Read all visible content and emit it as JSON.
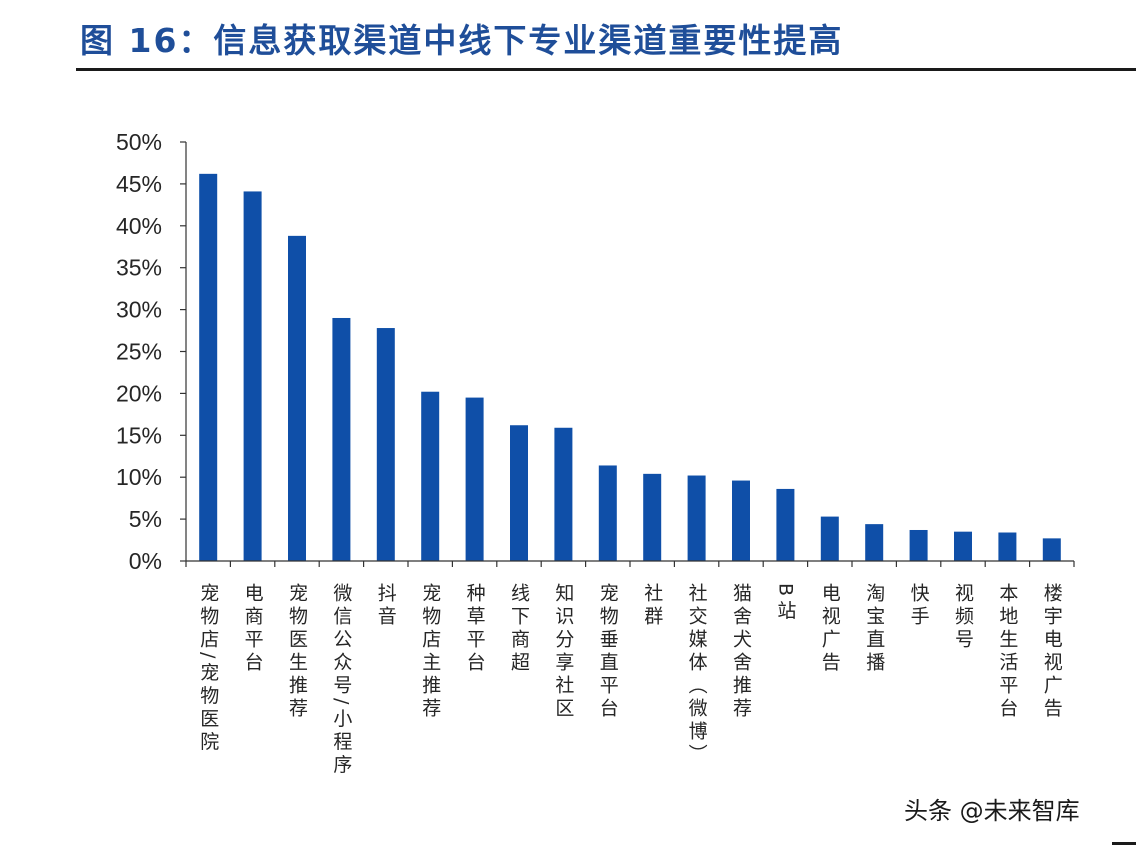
{
  "header": {
    "title": "图 16：信息获取渠道中线下专业渠道重要性提高"
  },
  "chart_data": {
    "type": "bar",
    "title": "",
    "xlabel": "",
    "ylabel": "",
    "ylim": [
      0,
      50
    ],
    "yticks": [
      "0%",
      "5%",
      "10%",
      "15%",
      "20%",
      "25%",
      "30%",
      "35%",
      "40%",
      "45%",
      "50%"
    ],
    "grid": false,
    "legend": "none",
    "bar_color": "#0f4fa8",
    "categories": [
      "宠物店/宠物医院",
      "电商平台",
      "宠物医生推荐",
      "微信公众号/小程序",
      "抖音",
      "宠物店主推荐",
      "种草平台",
      "线下商超",
      "知识分享社区",
      "宠物垂直平台",
      "社群",
      "社交媒体（微博）",
      "猫舍犬舍推荐",
      "B站",
      "电视广告",
      "淘宝直播",
      "快手",
      "视频号",
      "本地生活平台",
      "楼宇电视广告"
    ],
    "values": [
      46.2,
      44.1,
      38.8,
      29.0,
      27.8,
      20.2,
      19.5,
      16.2,
      15.9,
      11.4,
      10.4,
      10.2,
      9.6,
      8.6,
      5.3,
      4.4,
      3.7,
      3.5,
      3.4,
      2.7
    ]
  },
  "watermark": {
    "text": "头条 @未来智库"
  }
}
